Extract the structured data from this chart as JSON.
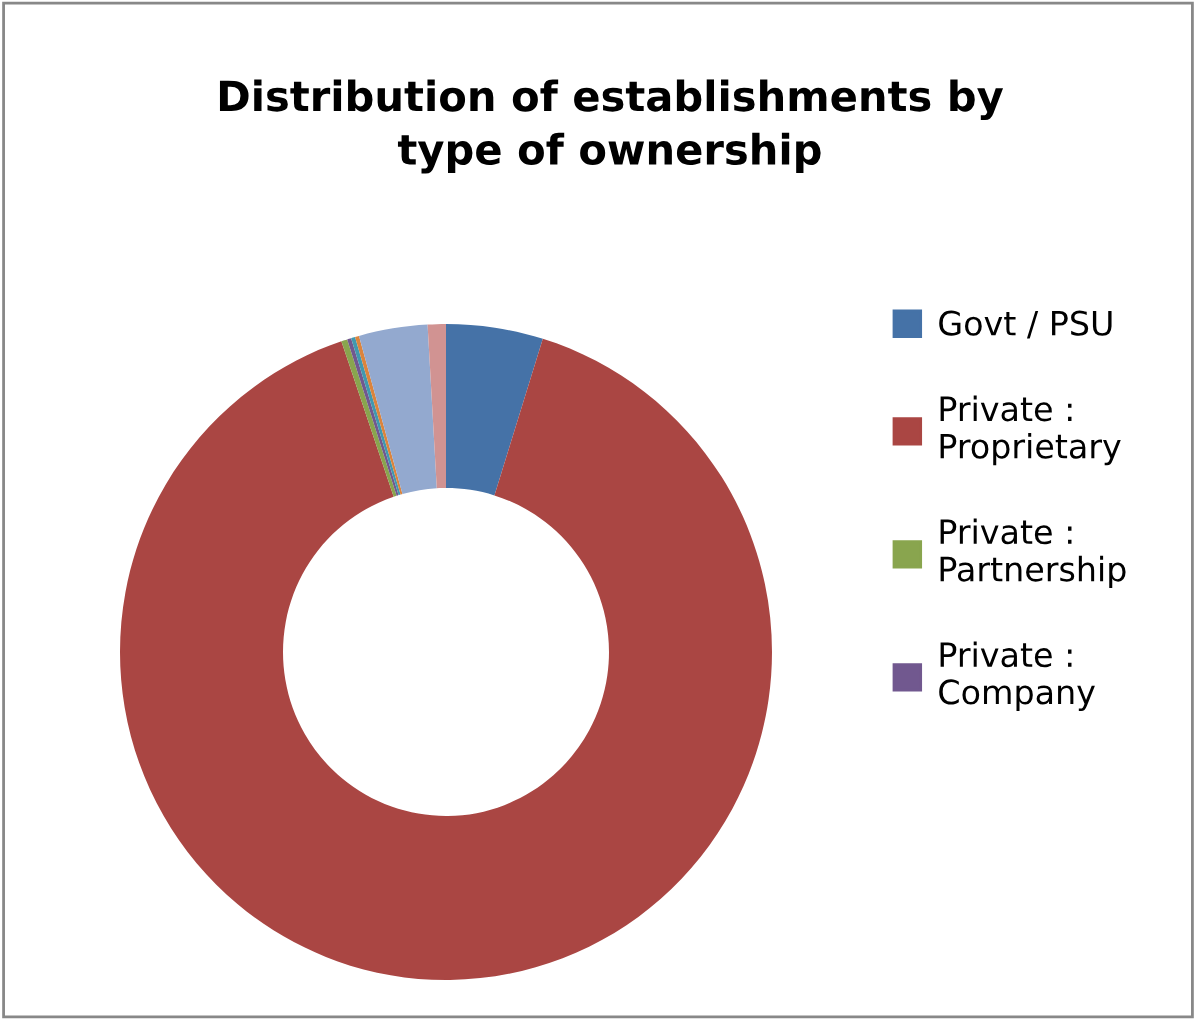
{
  "chart_data": {
    "type": "donut",
    "title": "Distribution of establishments by\ntype of ownership",
    "categories": [
      "Govt / PSU",
      "Private :\nProprietary",
      "Private :\nPartnership",
      "Private :\nCompany",
      null,
      null,
      null,
      null
    ],
    "values": [
      4.8,
      90.0,
      0.3,
      0.2,
      0.2,
      0.2,
      3.4,
      0.9
    ],
    "colors": [
      "#4572a7",
      "#aa4643",
      "#89a54e",
      "#71588f",
      "#4198af",
      "#db843d",
      "#93a9cf",
      "#d19392"
    ],
    "legend": "right"
  }
}
